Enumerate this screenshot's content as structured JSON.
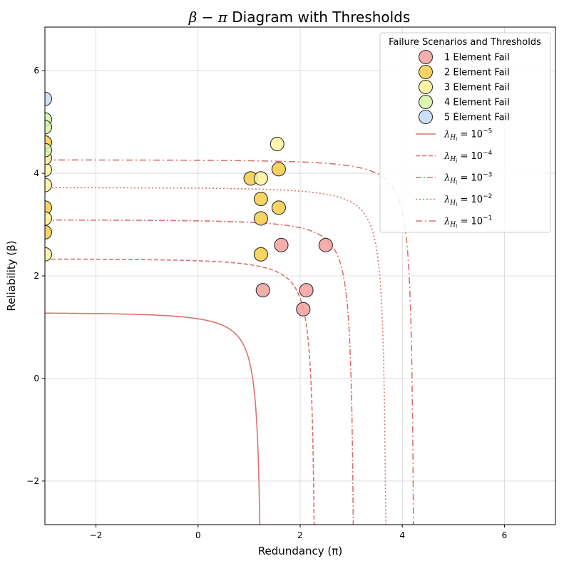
{
  "chart_data": {
    "type": "scatter",
    "title": "β − π Diagram with Thresholds",
    "title_parts": {
      "beta": "β",
      "minus": " − ",
      "pi": "π",
      "rest": " Diagram with Thresholds"
    },
    "xlabel": "Redundancy (π)",
    "ylabel": "Reliability (β)",
    "xlim": [
      -3,
      7
    ],
    "ylim": [
      -2.85,
      6.85
    ],
    "xticks": [
      -2,
      0,
      2,
      4,
      6
    ],
    "xtick_labels": [
      "−2",
      "0",
      "2",
      "4",
      "6"
    ],
    "yticks": [
      -2,
      0,
      2,
      4,
      6
    ],
    "ytick_labels": [
      "−2",
      "0",
      "2",
      "4",
      "6"
    ],
    "grid": true,
    "legend_title": "Failure Scenarios and Thresholds",
    "legend_position": "top-right",
    "series": [
      {
        "name": "1 Element Fail",
        "color": "#f4a09c",
        "points": [
          [
            1.27,
            1.72
          ],
          [
            2.06,
            1.35
          ],
          [
            2.12,
            1.72
          ],
          [
            1.63,
            2.6
          ],
          [
            2.5,
            2.6
          ]
        ]
      },
      {
        "name": "2 Element Fail",
        "color": "#f9cd47",
        "points": [
          [
            1.03,
            3.9
          ],
          [
            1.23,
            3.5
          ],
          [
            1.23,
            3.12
          ],
          [
            1.23,
            2.42
          ],
          [
            1.58,
            4.08
          ],
          [
            1.58,
            3.33
          ],
          [
            -3.0,
            4.6
          ],
          [
            -3.0,
            3.33
          ],
          [
            -3.0,
            2.85
          ]
        ]
      },
      {
        "name": "3 Element Fail",
        "color": "#fef59a",
        "points": [
          [
            1.23,
            3.9
          ],
          [
            1.55,
            4.57
          ],
          [
            -3.0,
            3.77
          ],
          [
            -3.0,
            4.07
          ],
          [
            -3.0,
            3.12
          ],
          [
            -3.0,
            2.42
          ],
          [
            -3.0,
            4.3
          ]
        ]
      },
      {
        "name": "4 Element Fail",
        "color": "#d6f5a6",
        "points": [
          [
            -3.0,
            5.05
          ],
          [
            -3.0,
            4.9
          ],
          [
            -3.0,
            4.45
          ]
        ]
      },
      {
        "name": "5 Element Fail",
        "color": "#c5daf6",
        "points": [
          [
            -3.0,
            5.45
          ]
        ]
      }
    ],
    "thresholds": {
      "color": "#d9736f",
      "lines": [
        {
          "label_base": "10",
          "label_exp": "−5",
          "asymptote": 1.28,
          "style": "solid"
        },
        {
          "label_base": "10",
          "label_exp": "−4",
          "asymptote": 2.33,
          "style": "dashed"
        },
        {
          "label_base": "10",
          "label_exp": "−3",
          "asymptote": 3.09,
          "style": "dashdot"
        },
        {
          "label_base": "10",
          "label_exp": "−2",
          "asymptote": 3.72,
          "style": "dotted"
        },
        {
          "label_base": "10",
          "label_exp": "−1",
          "asymptote": 4.26,
          "style": "loosedashdot"
        }
      ],
      "label_prefix": "λ",
      "label_sub": "H",
      "label_subsub": "i",
      "label_eq": " = "
    }
  }
}
